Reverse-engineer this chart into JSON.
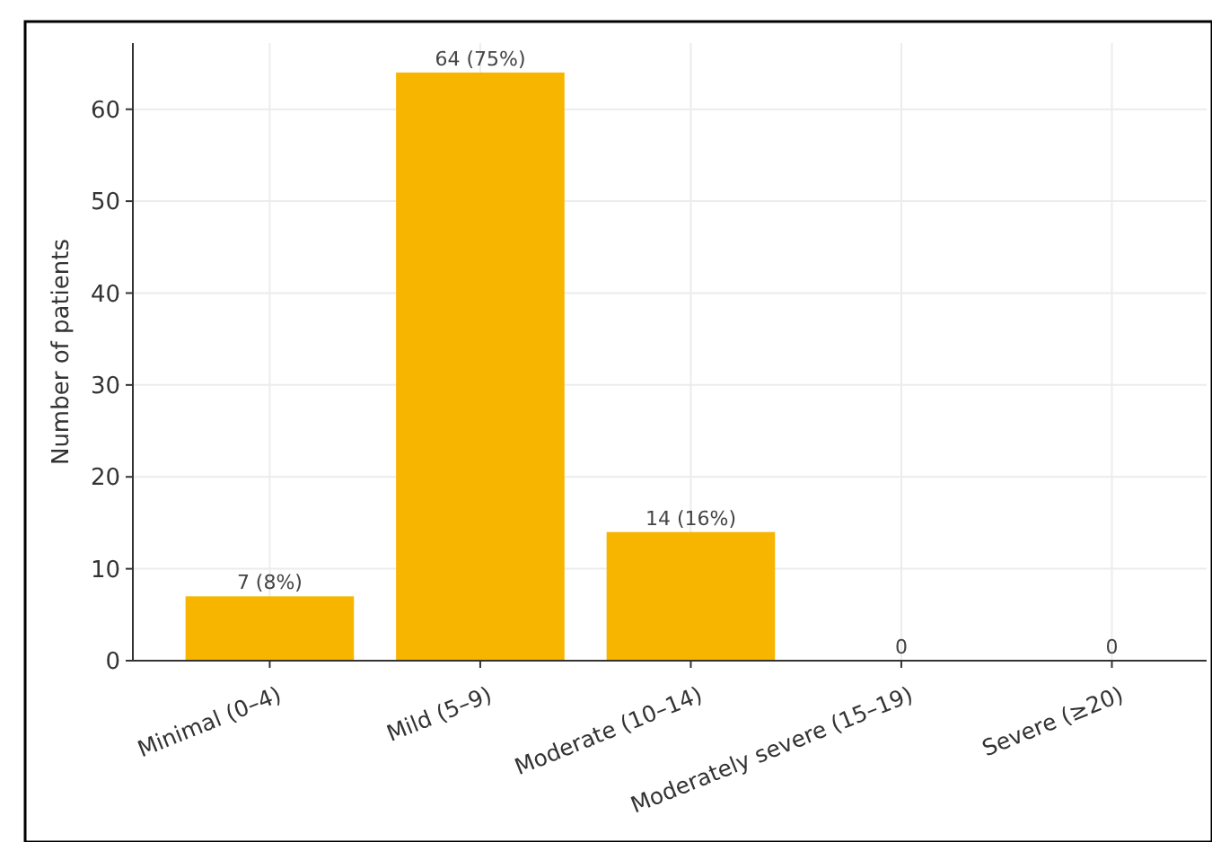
{
  "chart_data": {
    "type": "bar",
    "ylabel": "Number of patients",
    "categories": [
      "Minimal (0–4)",
      "Mild (5–9)",
      "Moderate (10–14)",
      "Moderately severe (15–19)",
      "Severe (≥20)"
    ],
    "values": [
      7,
      64,
      14,
      0,
      0
    ],
    "value_labels": [
      "7 (8%)",
      "64 (75%)",
      "14 (16%)",
      "0",
      "0"
    ],
    "color": "#f7b500",
    "ylim": [
      0,
      67.2
    ],
    "yticks": [
      0,
      10,
      20,
      30,
      40,
      50,
      60
    ],
    "grid": true
  }
}
